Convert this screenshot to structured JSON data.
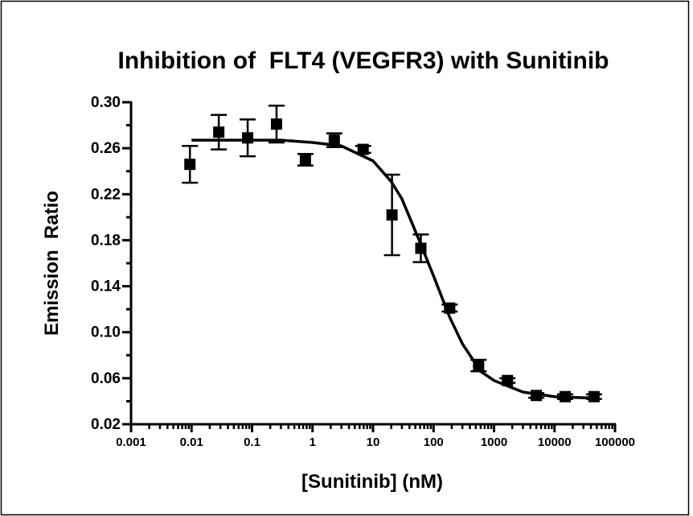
{
  "chart_data": {
    "type": "scatter",
    "title": "Inhibition of  FLT4 (VEGFR3) with Sunitinib",
    "x_label": "[Sunitinib] (nM)",
    "y_label": "Emission  Ratio",
    "x_scale": "log",
    "xlim": [
      0.001,
      100000
    ],
    "xticks": [
      0.001,
      0.01,
      0.1,
      1,
      10,
      100,
      1000,
      10000,
      100000
    ],
    "xminorticks": [
      0.002,
      0.003,
      0.004,
      0.005,
      0.006,
      0.007,
      0.008,
      0.009,
      0.02,
      0.03,
      0.04,
      0.05,
      0.06,
      0.07,
      0.08,
      0.09,
      0.2,
      0.3,
      0.4,
      0.5,
      0.6,
      0.7,
      0.8,
      0.9,
      2,
      3,
      4,
      5,
      6,
      7,
      8,
      9,
      20,
      30,
      40,
      50,
      60,
      70,
      80,
      90,
      200,
      300,
      400,
      500,
      600,
      700,
      800,
      900,
      2000,
      3000,
      4000,
      5000,
      6000,
      7000,
      8000,
      9000,
      20000,
      30000,
      40000,
      50000,
      60000,
      70000,
      80000,
      90000
    ],
    "ylim": [
      0.02,
      0.3
    ],
    "yticks": [
      {
        "value": 0.02,
        "label": "0.02"
      },
      {
        "value": 0.06,
        "label": "0.06"
      },
      {
        "value": 0.1,
        "label": "0.10"
      },
      {
        "value": 0.14,
        "label": "0.14"
      },
      {
        "value": 0.18,
        "label": "0.18"
      },
      {
        "value": 0.22,
        "label": "0.22"
      },
      {
        "value": 0.26,
        "label": "0.26"
      },
      {
        "value": 0.3,
        "label": "0.30"
      }
    ],
    "yminorticks": [
      0.04,
      0.08,
      0.12,
      0.16,
      0.2,
      0.24,
      0.28
    ],
    "color": "#000000",
    "series": [
      {
        "kind": "points",
        "x": [
          0.0094,
          0.0282,
          0.0847,
          0.254,
          0.762,
          2.29,
          6.86,
          20.6,
          61.7,
          185,
          556,
          1667,
          5000,
          15000,
          45000
        ],
        "values": [
          0.246,
          0.274,
          0.269,
          0.281,
          0.25,
          0.267,
          0.259,
          0.202,
          0.173,
          0.121,
          0.071,
          0.058,
          0.045,
          0.044,
          0.044
        ],
        "errors": [
          0.016,
          0.015,
          0.016,
          0.016,
          0.005,
          0.006,
          0.003,
          0.035,
          0.012,
          0.003,
          0.005,
          0.002,
          0.002,
          0.002,
          0.002
        ]
      },
      {
        "kind": "fit",
        "x": [
          0.01,
          0.03,
          0.1,
          0.3,
          1,
          3,
          10,
          20,
          30,
          60,
          100,
          185,
          300,
          600,
          1000,
          3000,
          10000,
          30000,
          50000
        ],
        "values": [
          0.267,
          0.267,
          0.267,
          0.267,
          0.265,
          0.262,
          0.249,
          0.231,
          0.216,
          0.178,
          0.149,
          0.113,
          0.09,
          0.066,
          0.058,
          0.048,
          0.044,
          0.043,
          0.043
        ]
      }
    ]
  }
}
